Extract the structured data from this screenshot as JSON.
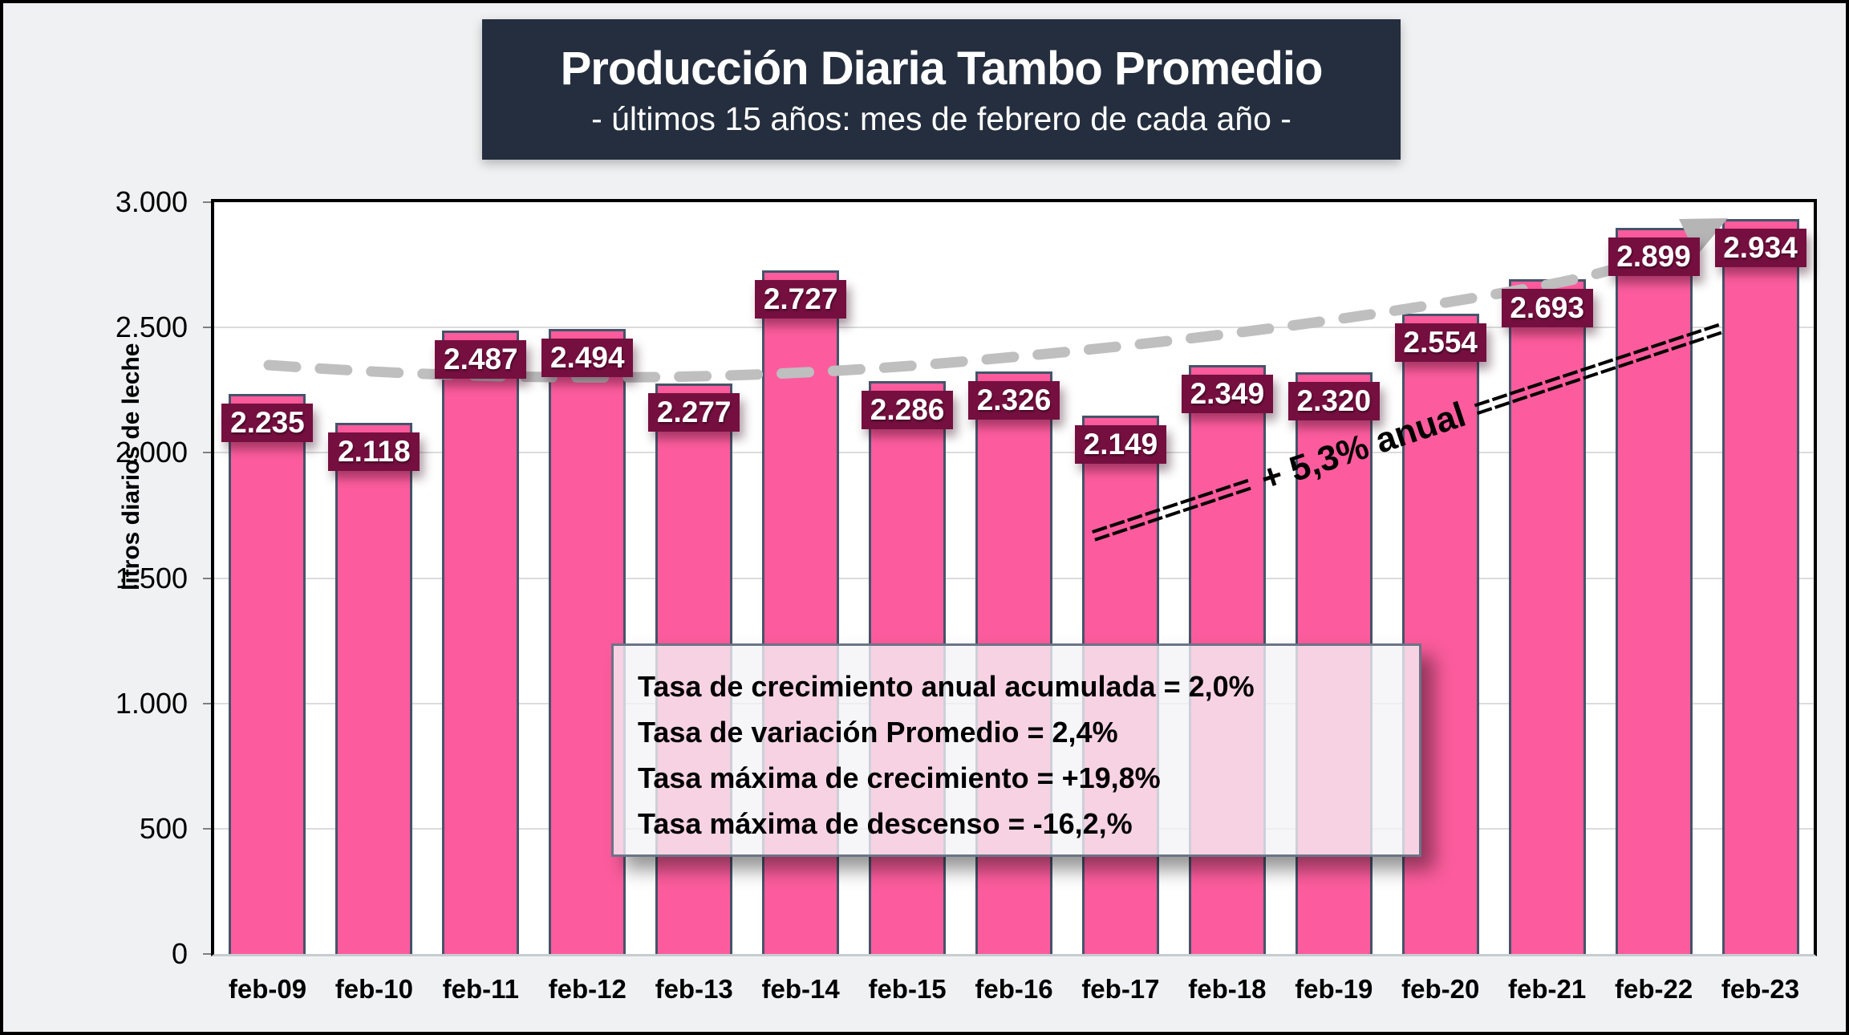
{
  "title": {
    "text": "Producción Diaria Tambo Promedio",
    "subtitle": "- últimos 15 años: mes de febrero de cada año -"
  },
  "y_axis": {
    "label": "litros diarios de leche",
    "ticks": [
      "3.000",
      "2.500",
      "2.000",
      "1.500",
      "1.000",
      "500",
      "0"
    ]
  },
  "chart_data": {
    "type": "bar",
    "title": "Producción Diaria Tambo Promedio",
    "subtitle": "- últimos 15 años: mes de febrero de cada año -",
    "ylabel": "litros diarios de leche",
    "xlabel": "",
    "ylim": [
      0,
      3000
    ],
    "ytick_step": 500,
    "grid": true,
    "categories": [
      "feb-09",
      "feb-10",
      "feb-11",
      "feb-12",
      "feb-13",
      "feb-14",
      "feb-15",
      "feb-16",
      "feb-17",
      "feb-18",
      "feb-19",
      "feb-20",
      "feb-21",
      "feb-22",
      "feb-23"
    ],
    "values": [
      2235,
      2118,
      2487,
      2494,
      2277,
      2727,
      2286,
      2326,
      2149,
      2349,
      2320,
      2554,
      2693,
      2899,
      2934
    ],
    "value_labels": [
      "2.235",
      "2.118",
      "2.487",
      "2.494",
      "2.277",
      "2.727",
      "2.286",
      "2.326",
      "2.149",
      "2.349",
      "2.320",
      "2.554",
      "2.693",
      "2.899",
      "2.934"
    ],
    "trend": {
      "type": "dashed-curve-with-arrow",
      "label": "+ 5,3% anual",
      "equals_left": "=========",
      "equals_right": "=============="
    }
  },
  "stats_box": {
    "lines": [
      "Tasa de crecimiento anual acumulada = 2,0%",
      "Tasa de variación Promedio = 2,4%",
      "Tasa máxima de crecimiento = +19,8%",
      "Tasa máxima de descenso = -16,2,%"
    ]
  },
  "colors": {
    "background": "#f0f1f2",
    "title_bg": "#242e3e",
    "title_text": "#ffffff",
    "bar_fill": "#fc5c9d",
    "bar_border": "#44546a",
    "value_label_bg": "#750f3f",
    "value_label_text": "#ffffff",
    "trend_dash": "#bfbfbf",
    "gridline": "#dcdcdc",
    "annotation_text": "#000000"
  }
}
